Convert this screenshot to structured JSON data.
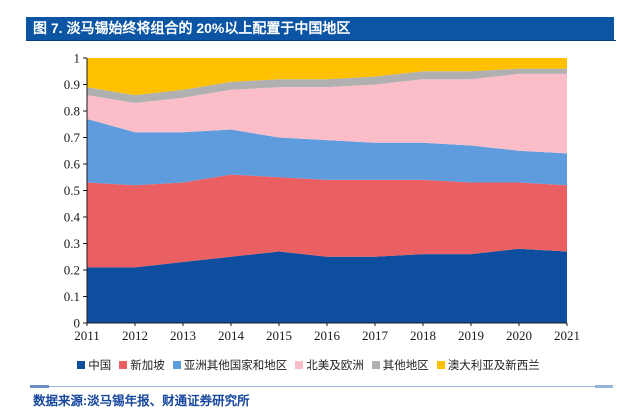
{
  "header": {
    "title": "图 7. 淡马锡始终将组合的 20%以上配置于中国地区"
  },
  "chart_data": {
    "type": "area",
    "stacked": true,
    "title": "图 7. 淡马锡始终将组合的 20%以上配置于中国地区",
    "categories": [
      "2011",
      "2012",
      "2013",
      "2014",
      "2015",
      "2016",
      "2017",
      "2018",
      "2019",
      "2020",
      "2021"
    ],
    "ylim": [
      0,
      1
    ],
    "yticks": [
      "0",
      "0.1",
      "0.2",
      "0.3",
      "0.4",
      "0.5",
      "0.6",
      "0.7",
      "0.8",
      "0.9",
      "1"
    ],
    "grid": false,
    "legend_position": "bottom",
    "series": [
      {
        "name": "中国",
        "color": "#0D4E9F",
        "values": [
          0.21,
          0.21,
          0.23,
          0.25,
          0.27,
          0.25,
          0.25,
          0.26,
          0.26,
          0.28,
          0.27
        ]
      },
      {
        "name": "新加坡",
        "color": "#EA5F61",
        "values": [
          0.32,
          0.31,
          0.3,
          0.31,
          0.28,
          0.29,
          0.29,
          0.28,
          0.27,
          0.25,
          0.25
        ]
      },
      {
        "name": "亚洲其他国家和地区",
        "color": "#5E9CDE",
        "values": [
          0.24,
          0.2,
          0.19,
          0.17,
          0.15,
          0.15,
          0.14,
          0.14,
          0.14,
          0.12,
          0.12
        ]
      },
      {
        "name": "北美及欧洲",
        "color": "#FBBEC9",
        "values": [
          0.09,
          0.11,
          0.13,
          0.15,
          0.19,
          0.2,
          0.22,
          0.24,
          0.25,
          0.29,
          0.3
        ]
      },
      {
        "name": "其他地区",
        "color": "#B0B0B0",
        "values": [
          0.03,
          0.03,
          0.03,
          0.03,
          0.03,
          0.03,
          0.03,
          0.03,
          0.03,
          0.02,
          0.02
        ]
      },
      {
        "name": "澳大利亚及新西兰",
        "color": "#FFC000",
        "values": [
          0.11,
          0.14,
          0.12,
          0.09,
          0.08,
          0.08,
          0.07,
          0.05,
          0.05,
          0.04,
          0.04
        ]
      }
    ]
  },
  "footer": {
    "source_label": "数据来源:淡马锡年报、财通证券研究所"
  },
  "colors": {
    "header_bg": "#0B55A4",
    "header_text": "#FFFFFF",
    "source_text": "#17479E",
    "axis": "#1A1A1A"
  }
}
